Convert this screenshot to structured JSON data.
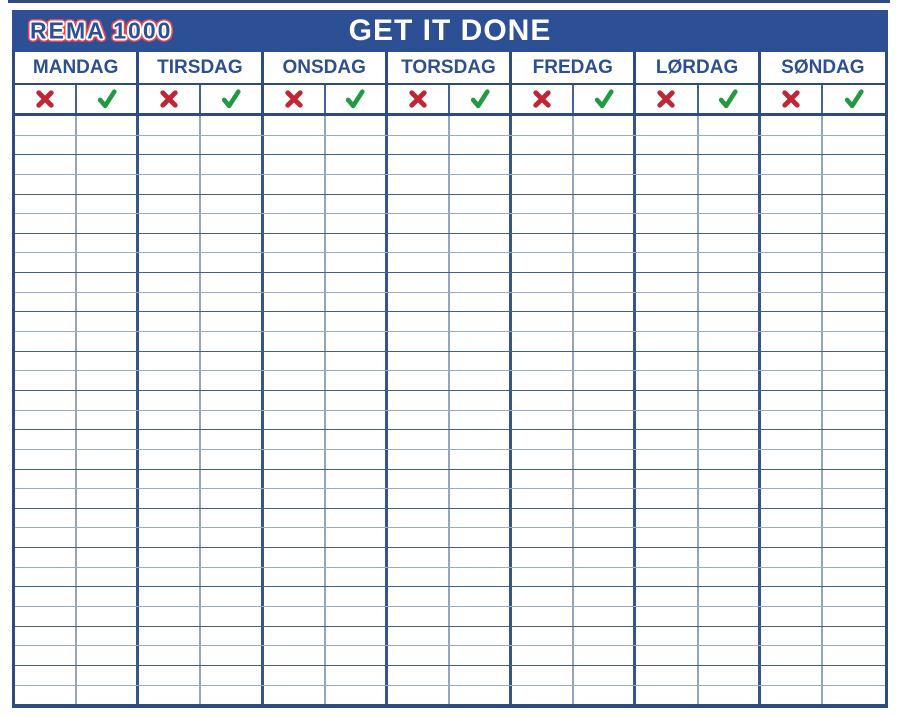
{
  "header": {
    "logo_text": "REMA 1000",
    "title": "GET IT DONE"
  },
  "week": {
    "days": [
      "MANDAG",
      "TIRSDAG",
      "ONSDAG",
      "TORSDAG",
      "FREDAG",
      "LØRDAG",
      "SØNDAG"
    ],
    "mark_legend": [
      {
        "icon": "x-icon",
        "meaning": "not-done",
        "color": "#c02634"
      },
      {
        "icon": "check-icon",
        "meaning": "done",
        "color": "#219b41"
      }
    ]
  },
  "grid": {
    "row_count": 30,
    "columns_per_day": 2
  },
  "colors": {
    "header_bar": "#2d4f94",
    "day_label": "#2d5094",
    "border_dark": "#2e4c82",
    "line_dark": "#41608f",
    "line_light": "#9aabc5",
    "x_red": "#c02634",
    "check_green": "#219b41",
    "logo_outline_white": "#ffffff",
    "logo_outline_red": "#e8465a"
  }
}
